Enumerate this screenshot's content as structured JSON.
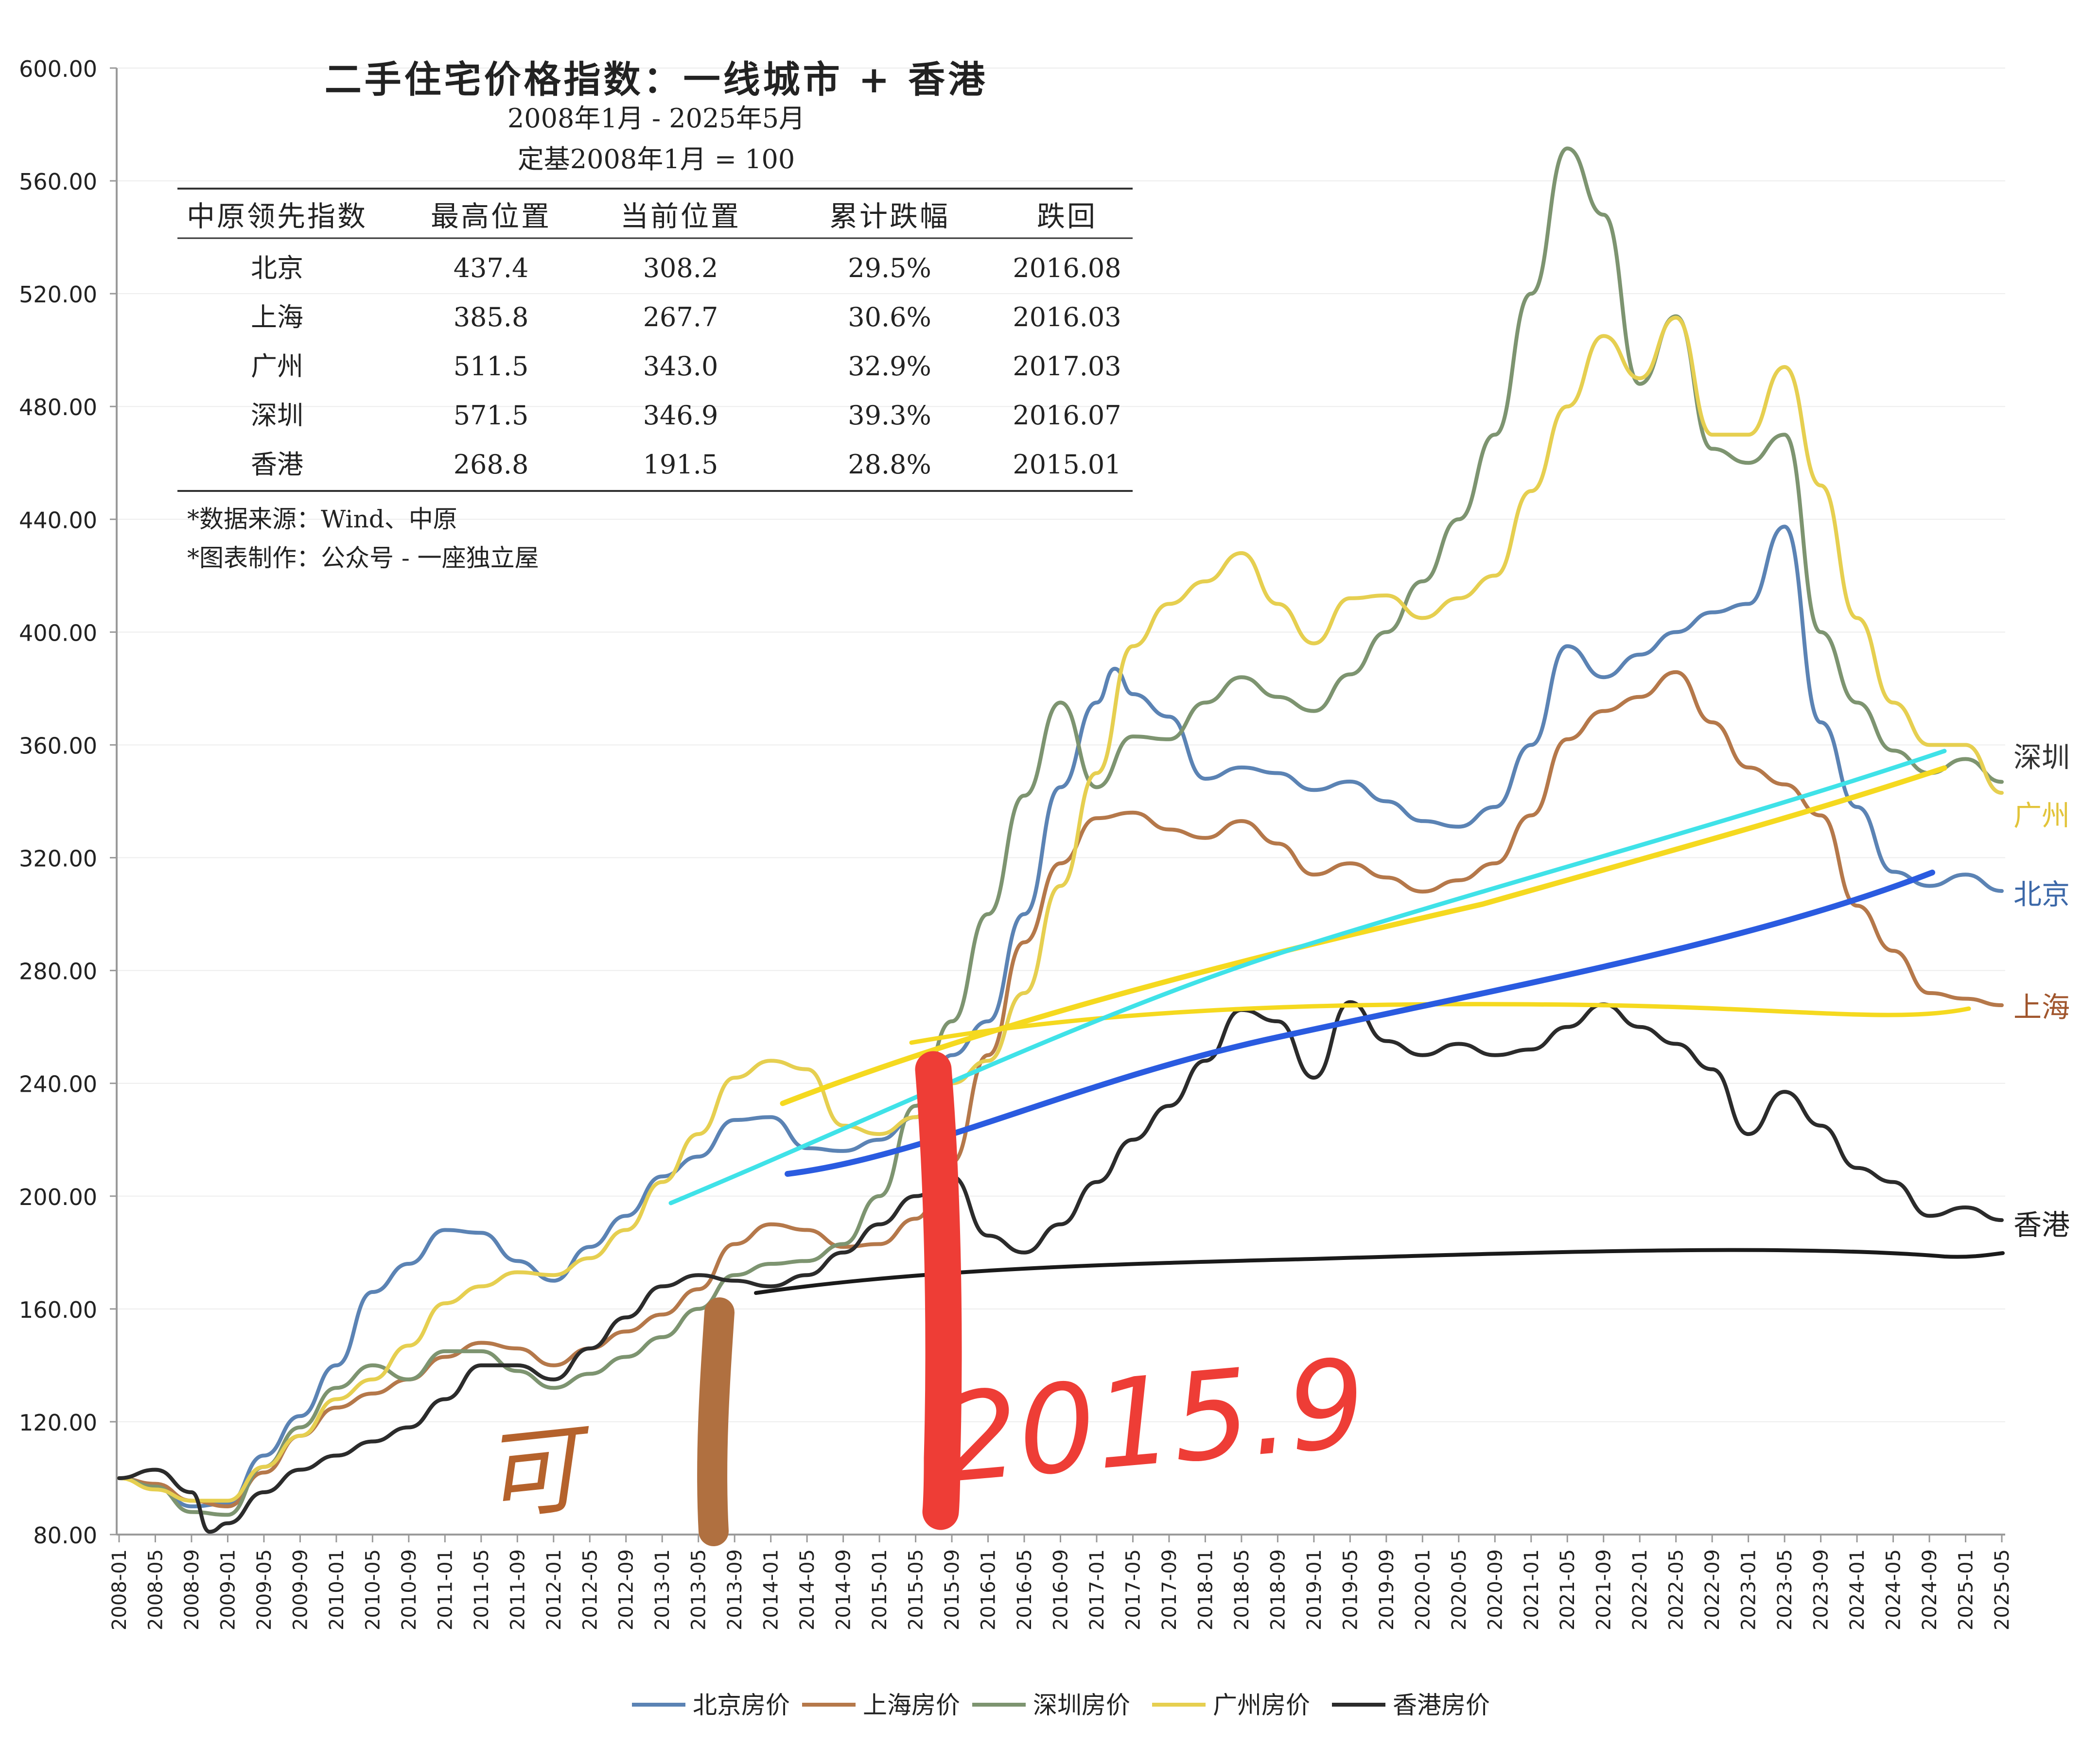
{
  "chart_data": {
    "type": "line",
    "title": "二手住宅价格指数：一线城市 + 香港",
    "subtitle": "2008年1月 - 2025年5月",
    "subtitle2": "定基2008年1月 = 100",
    "ylim": [
      80,
      600
    ],
    "yticks": [
      "600.00",
      "560.00",
      "520.00",
      "480.00",
      "440.00",
      "400.00",
      "360.00",
      "320.00",
      "280.00",
      "240.00",
      "200.00",
      "160.00",
      "120.00",
      "80.00"
    ],
    "xticks": [
      "2008-01",
      "2008-05",
      "2008-09",
      "2009-01",
      "2009-05",
      "2009-09",
      "2010-01",
      "2010-05",
      "2010-09",
      "2011-01",
      "2011-05",
      "2011-09",
      "2012-01",
      "2012-05",
      "2012-09",
      "2013-01",
      "2013-05",
      "2013-09",
      "2014-01",
      "2014-05",
      "2014-09",
      "2015-01",
      "2015-05",
      "2015-09",
      "2016-01",
      "2016-05",
      "2016-09",
      "2017-01",
      "2017-05",
      "2017-09",
      "2018-01",
      "2018-05",
      "2018-09",
      "2019-01",
      "2019-05",
      "2019-09",
      "2020-01",
      "2020-05",
      "2020-09",
      "2021-01",
      "2021-05",
      "2021-09",
      "2022-01",
      "2022-05",
      "2022-09",
      "2023-01",
      "2023-05",
      "2023-09",
      "2024-01",
      "2024-05",
      "2024-09",
      "2025-01",
      "2025-05"
    ],
    "table": {
      "headers": [
        "中原领先指数",
        "最高位置",
        "当前位置",
        "累计跌幅",
        "跌回"
      ],
      "rows": [
        [
          "北京",
          "437.4",
          "308.2",
          "29.5%",
          "2016.08"
        ],
        [
          "上海",
          "385.8",
          "267.7",
          "30.6%",
          "2016.03"
        ],
        [
          "广州",
          "511.5",
          "343.0",
          "32.9%",
          "2017.03"
        ],
        [
          "深圳",
          "571.5",
          "346.9",
          "39.3%",
          "2016.07"
        ],
        [
          "香港",
          "268.8",
          "191.5",
          "28.8%",
          "2015.01"
        ]
      ]
    },
    "notes": [
      "*数据来源：Wind、中原",
      "*图表制作：公众号 - 一座独立屋"
    ],
    "end_labels": [
      "深圳",
      "广州",
      "北京",
      "上海",
      "香港"
    ],
    "legend_position": "bottom",
    "series": [
      {
        "name": "北京房价",
        "color": "#5b83b4",
        "points": [
          [
            "2008-01",
            100
          ],
          [
            "2008-05",
            97
          ],
          [
            "2008-09",
            90
          ],
          [
            "2009-01",
            91
          ],
          [
            "2009-05",
            108
          ],
          [
            "2009-09",
            122
          ],
          [
            "2010-01",
            140
          ],
          [
            "2010-05",
            166
          ],
          [
            "2010-09",
            176
          ],
          [
            "2011-01",
            188
          ],
          [
            "2011-05",
            187
          ],
          [
            "2011-09",
            177
          ],
          [
            "2012-01",
            170
          ],
          [
            "2012-05",
            182
          ],
          [
            "2012-09",
            193
          ],
          [
            "2013-01",
            207
          ],
          [
            "2013-05",
            214
          ],
          [
            "2013-09",
            227
          ],
          [
            "2014-01",
            228
          ],
          [
            "2014-05",
            217
          ],
          [
            "2014-09",
            216
          ],
          [
            "2015-01",
            220
          ],
          [
            "2015-05",
            228
          ],
          [
            "2015-09",
            250
          ],
          [
            "2016-01",
            262
          ],
          [
            "2016-05",
            300
          ],
          [
            "2016-09",
            345
          ],
          [
            "2017-01",
            375
          ],
          [
            "2017-03",
            387
          ],
          [
            "2017-05",
            378
          ],
          [
            "2017-09",
            370
          ],
          [
            "2018-01",
            348
          ],
          [
            "2018-05",
            352
          ],
          [
            "2018-09",
            350
          ],
          [
            "2019-01",
            344
          ],
          [
            "2019-05",
            347
          ],
          [
            "2019-09",
            340
          ],
          [
            "2020-01",
            333
          ],
          [
            "2020-05",
            331
          ],
          [
            "2020-09",
            338
          ],
          [
            "2021-01",
            360
          ],
          [
            "2021-05",
            395
          ],
          [
            "2021-09",
            384
          ],
          [
            "2022-01",
            392
          ],
          [
            "2022-05",
            400
          ],
          [
            "2022-09",
            407
          ],
          [
            "2023-01",
            410
          ],
          [
            "2023-05",
            437.4
          ],
          [
            "2023-09",
            368
          ],
          [
            "2024-01",
            338
          ],
          [
            "2024-05",
            315
          ],
          [
            "2024-09",
            310
          ],
          [
            "2025-01",
            314
          ],
          [
            "2025-05",
            308.2
          ]
        ]
      },
      {
        "name": "上海房价",
        "color": "#b5784a",
        "points": [
          [
            "2008-01",
            100
          ],
          [
            "2008-05",
            98
          ],
          [
            "2008-09",
            92
          ],
          [
            "2009-01",
            90
          ],
          [
            "2009-05",
            102
          ],
          [
            "2009-09",
            115
          ],
          [
            "2010-01",
            125
          ],
          [
            "2010-05",
            130
          ],
          [
            "2010-09",
            135
          ],
          [
            "2011-01",
            143
          ],
          [
            "2011-05",
            148
          ],
          [
            "2011-09",
            146
          ],
          [
            "2012-01",
            140
          ],
          [
            "2012-05",
            146
          ],
          [
            "2012-09",
            152
          ],
          [
            "2013-01",
            158
          ],
          [
            "2013-05",
            167
          ],
          [
            "2013-09",
            183
          ],
          [
            "2014-01",
            190
          ],
          [
            "2014-05",
            188
          ],
          [
            "2014-09",
            182
          ],
          [
            "2015-01",
            183
          ],
          [
            "2015-05",
            192
          ],
          [
            "2015-09",
            212
          ],
          [
            "2016-01",
            250
          ],
          [
            "2016-05",
            290
          ],
          [
            "2016-09",
            318
          ],
          [
            "2017-01",
            334
          ],
          [
            "2017-05",
            336
          ],
          [
            "2017-09",
            330
          ],
          [
            "2018-01",
            327
          ],
          [
            "2018-05",
            333
          ],
          [
            "2018-09",
            325
          ],
          [
            "2019-01",
            314
          ],
          [
            "2019-05",
            318
          ],
          [
            "2019-09",
            313
          ],
          [
            "2020-01",
            308
          ],
          [
            "2020-05",
            312
          ],
          [
            "2020-09",
            318
          ],
          [
            "2021-01",
            335
          ],
          [
            "2021-05",
            362
          ],
          [
            "2021-09",
            372
          ],
          [
            "2022-01",
            377
          ],
          [
            "2022-05",
            385.8
          ],
          [
            "2022-09",
            368
          ],
          [
            "2023-01",
            352
          ],
          [
            "2023-05",
            346
          ],
          [
            "2023-09",
            335
          ],
          [
            "2024-01",
            303
          ],
          [
            "2024-05",
            287
          ],
          [
            "2024-09",
            272
          ],
          [
            "2025-01",
            270
          ],
          [
            "2025-05",
            267.7
          ]
        ]
      },
      {
        "name": "深圳房价",
        "color": "#7d9470",
        "points": [
          [
            "2008-01",
            100
          ],
          [
            "2008-05",
            97
          ],
          [
            "2008-09",
            88
          ],
          [
            "2009-01",
            87
          ],
          [
            "2009-05",
            104
          ],
          [
            "2009-09",
            118
          ],
          [
            "2010-01",
            132
          ],
          [
            "2010-05",
            140
          ],
          [
            "2010-09",
            135
          ],
          [
            "2011-01",
            145
          ],
          [
            "2011-05",
            145
          ],
          [
            "2011-09",
            138
          ],
          [
            "2012-01",
            132
          ],
          [
            "2012-05",
            137
          ],
          [
            "2012-09",
            143
          ],
          [
            "2013-01",
            150
          ],
          [
            "2013-05",
            160
          ],
          [
            "2013-09",
            172
          ],
          [
            "2014-01",
            176
          ],
          [
            "2014-05",
            177
          ],
          [
            "2014-09",
            183
          ],
          [
            "2015-01",
            200
          ],
          [
            "2015-05",
            232
          ],
          [
            "2015-09",
            262
          ],
          [
            "2016-01",
            300
          ],
          [
            "2016-05",
            342
          ],
          [
            "2016-09",
            375
          ],
          [
            "2017-01",
            345
          ],
          [
            "2017-05",
            363
          ],
          [
            "2017-09",
            362
          ],
          [
            "2018-01",
            375
          ],
          [
            "2018-05",
            384
          ],
          [
            "2018-09",
            377
          ],
          [
            "2019-01",
            372
          ],
          [
            "2019-05",
            385
          ],
          [
            "2019-09",
            400
          ],
          [
            "2020-01",
            418
          ],
          [
            "2020-05",
            440
          ],
          [
            "2020-09",
            470
          ],
          [
            "2021-01",
            520
          ],
          [
            "2021-05",
            571.5
          ],
          [
            "2021-09",
            548
          ],
          [
            "2022-01",
            488
          ],
          [
            "2022-05",
            512
          ],
          [
            "2022-09",
            465
          ],
          [
            "2023-01",
            460
          ],
          [
            "2023-05",
            470
          ],
          [
            "2023-09",
            400
          ],
          [
            "2024-01",
            375
          ],
          [
            "2024-05",
            358
          ],
          [
            "2024-09",
            350
          ],
          [
            "2025-01",
            355
          ],
          [
            "2025-05",
            346.9
          ]
        ]
      },
      {
        "name": "广州房价",
        "color": "#e6cf50",
        "points": [
          [
            "2008-01",
            100
          ],
          [
            "2008-05",
            96
          ],
          [
            "2008-09",
            92
          ],
          [
            "2009-01",
            92
          ],
          [
            "2009-05",
            104
          ],
          [
            "2009-09",
            115
          ],
          [
            "2010-01",
            128
          ],
          [
            "2010-05",
            135
          ],
          [
            "2010-09",
            147
          ],
          [
            "2011-01",
            162
          ],
          [
            "2011-05",
            168
          ],
          [
            "2011-09",
            173
          ],
          [
            "2012-01",
            172
          ],
          [
            "2012-05",
            178
          ],
          [
            "2012-09",
            188
          ],
          [
            "2013-01",
            205
          ],
          [
            "2013-05",
            222
          ],
          [
            "2013-09",
            242
          ],
          [
            "2014-01",
            248
          ],
          [
            "2014-05",
            245
          ],
          [
            "2014-09",
            225
          ],
          [
            "2015-01",
            222
          ],
          [
            "2015-05",
            228
          ],
          [
            "2015-09",
            240
          ],
          [
            "2016-01",
            248
          ],
          [
            "2016-05",
            272
          ],
          [
            "2016-09",
            310
          ],
          [
            "2017-01",
            350
          ],
          [
            "2017-05",
            395
          ],
          [
            "2017-09",
            410
          ],
          [
            "2018-01",
            418
          ],
          [
            "2018-05",
            428
          ],
          [
            "2018-09",
            410
          ],
          [
            "2019-01",
            396
          ],
          [
            "2019-05",
            412
          ],
          [
            "2019-09",
            413
          ],
          [
            "2020-01",
            405
          ],
          [
            "2020-05",
            412
          ],
          [
            "2020-09",
            420
          ],
          [
            "2021-01",
            450
          ],
          [
            "2021-05",
            480
          ],
          [
            "2021-09",
            505
          ],
          [
            "2022-01",
            490
          ],
          [
            "2022-05",
            511.5
          ],
          [
            "2022-09",
            470
          ],
          [
            "2023-01",
            470
          ],
          [
            "2023-05",
            494
          ],
          [
            "2023-09",
            452
          ],
          [
            "2024-01",
            405
          ],
          [
            "2024-05",
            375
          ],
          [
            "2024-09",
            360
          ],
          [
            "2025-01",
            360
          ],
          [
            "2025-05",
            343.0
          ]
        ]
      },
      {
        "name": "香港房价",
        "color": "#2b2b2b",
        "points": [
          [
            "2008-01",
            100
          ],
          [
            "2008-05",
            103
          ],
          [
            "2008-09",
            95
          ],
          [
            "2008-11",
            81
          ],
          [
            "2009-01",
            84
          ],
          [
            "2009-05",
            95
          ],
          [
            "2009-09",
            103
          ],
          [
            "2010-01",
            108
          ],
          [
            "2010-05",
            113
          ],
          [
            "2010-09",
            118
          ],
          [
            "2011-01",
            128
          ],
          [
            "2011-05",
            140
          ],
          [
            "2011-09",
            140
          ],
          [
            "2012-01",
            135
          ],
          [
            "2012-05",
            146
          ],
          [
            "2012-09",
            157
          ],
          [
            "2013-01",
            168
          ],
          [
            "2013-05",
            172
          ],
          [
            "2013-09",
            170
          ],
          [
            "2014-01",
            168
          ],
          [
            "2014-05",
            172
          ],
          [
            "2014-09",
            180
          ],
          [
            "2015-01",
            190
          ],
          [
            "2015-05",
            200
          ],
          [
            "2015-09",
            207
          ],
          [
            "2016-01",
            186
          ],
          [
            "2016-05",
            180
          ],
          [
            "2016-09",
            190
          ],
          [
            "2017-01",
            205
          ],
          [
            "2017-05",
            220
          ],
          [
            "2017-09",
            232
          ],
          [
            "2018-01",
            248
          ],
          [
            "2018-05",
            266
          ],
          [
            "2018-09",
            262
          ],
          [
            "2019-01",
            242
          ],
          [
            "2019-05",
            268.8
          ],
          [
            "2019-09",
            255
          ],
          [
            "2020-01",
            250
          ],
          [
            "2020-05",
            254
          ],
          [
            "2020-09",
            250
          ],
          [
            "2021-01",
            252
          ],
          [
            "2021-05",
            260
          ],
          [
            "2021-09",
            268
          ],
          [
            "2022-01",
            260
          ],
          [
            "2022-05",
            254
          ],
          [
            "2022-09",
            245
          ],
          [
            "2023-01",
            222
          ],
          [
            "2023-05",
            237
          ],
          [
            "2023-09",
            225
          ],
          [
            "2024-01",
            210
          ],
          [
            "2024-05",
            205
          ],
          [
            "2024-09",
            193
          ],
          [
            "2025-01",
            196
          ],
          [
            "2025-05",
            191.5
          ]
        ]
      }
    ],
    "annotations": [
      "可",
      "2015.9"
    ]
  }
}
